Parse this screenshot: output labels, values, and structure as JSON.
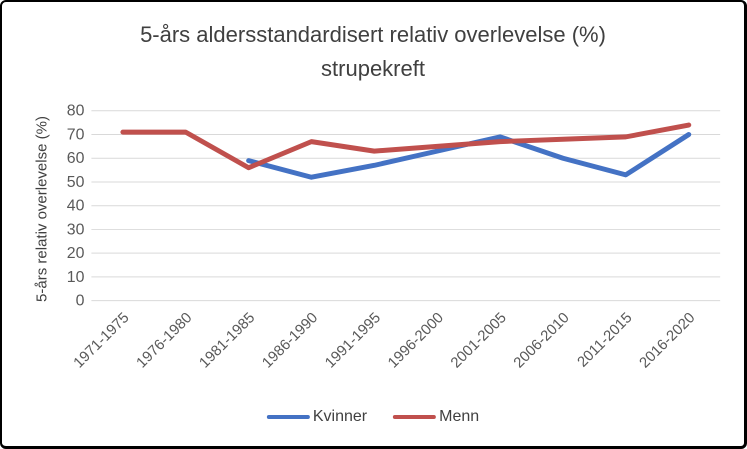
{
  "title": {
    "line1": "5-års aldersstandardisert relativ overlevelse (%)",
    "line2": "strupekreft"
  },
  "chart_data": {
    "type": "line",
    "title": "5-års aldersstandardisert relativ overlevelse (%) strupekreft",
    "xlabel": "",
    "ylabel": "5-års relativ overlevelse (%)",
    "ylim": [
      0,
      80
    ],
    "ytick_step": 10,
    "grid": "horizontal",
    "legend_position": "bottom",
    "categories": [
      "1971-1975",
      "1976-1980",
      "1981-1985",
      "1986-1990",
      "1991-1995",
      "1996-2000",
      "2001-2005",
      "2006-2010",
      "2011-2015",
      "2016-2020"
    ],
    "series": [
      {
        "name": "Kvinner",
        "color": "#4472C4",
        "values": [
          null,
          null,
          59,
          52,
          57,
          63,
          69,
          60,
          53,
          70
        ]
      },
      {
        "name": "Menn",
        "color": "#C0504D",
        "values": [
          71,
          71,
          56,
          67,
          63,
          65,
          67,
          68,
          69,
          74
        ]
      }
    ]
  },
  "colors": {
    "background": "#FFFFFF",
    "border": "#000000",
    "gridline": "#D9D9D9",
    "tick_label": "#595959",
    "text": "#404040"
  }
}
